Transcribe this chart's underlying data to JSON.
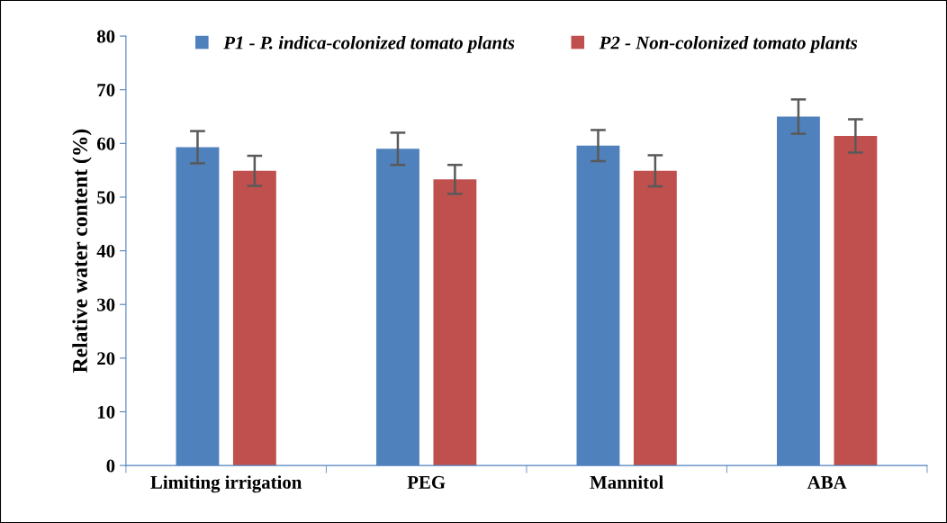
{
  "chart_data": {
    "type": "bar",
    "ylabel": "Relative water content (%)",
    "categories": [
      "Limiting irrigation",
      "PEG",
      "Mannitol",
      "ABA"
    ],
    "series": [
      {
        "name": "P1 - P. indica-colonized tomato plants",
        "color": "#4f81bd",
        "values": [
          59.3,
          59.0,
          59.6,
          65.0
        ],
        "errors": [
          3.0,
          3.0,
          2.9,
          3.2
        ]
      },
      {
        "name": "P2 - Non-colonized tomato plants",
        "color": "#c0504d",
        "values": [
          54.9,
          53.3,
          54.9,
          61.4
        ],
        "errors": [
          2.8,
          2.7,
          2.9,
          3.1
        ]
      }
    ],
    "ylim": [
      0,
      80
    ],
    "yticks": [
      0,
      10,
      20,
      30,
      40,
      50,
      60,
      70,
      80
    ],
    "grid": false,
    "legend": "top"
  }
}
